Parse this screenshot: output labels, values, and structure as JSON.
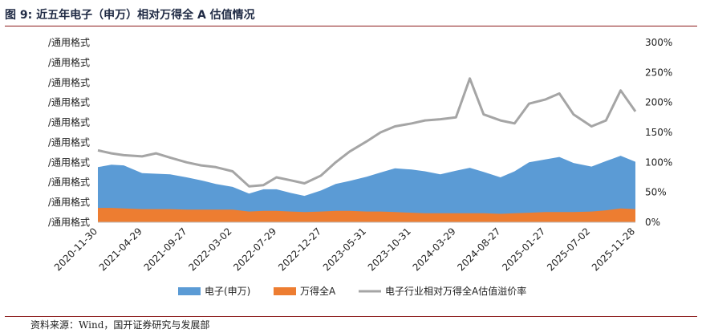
{
  "title": "图 9:  近五年电子（申万）相对万得全 A 估值情况",
  "source": "资料来源：Wind，国开证券研究与发展部",
  "chart_data": {
    "type": "area",
    "x_ticks": [
      "2020-11-30",
      "2021-04-29",
      "2021-09-27",
      "2022-03-02",
      "2022-07-29",
      "2022-12-27",
      "2023-05-31",
      "2023-10-31",
      "2024-03-29",
      "2024-08-27",
      "2025-01-27",
      "2025-07-02",
      "2025-11-28"
    ],
    "left_tick_labels": [
      "/通用格式",
      "/通用格式",
      "/通用格式",
      "/通用格式",
      "/通用格式",
      "/通用格式",
      "/通用格式",
      "/通用格式",
      "/通用格式",
      "/通用格式"
    ],
    "right_ticks": [
      "0%",
      "50%",
      "100%",
      "150%",
      "200%",
      "250%",
      "300%"
    ],
    "right_ylim": [
      0,
      300
    ],
    "colors": {
      "electronics": "#5b9bd5",
      "wind_all_a": "#ed7d31",
      "premium": "#a5a5a5"
    },
    "legend": [
      "电子(申万)",
      "万得全A",
      "电子行业相对万得全A估值溢价率"
    ],
    "x": [
      "2020-11-30",
      "2021-01-15",
      "2021-02-26",
      "2021-04-29",
      "2021-06-15",
      "2021-08-02",
      "2021-09-27",
      "2021-11-15",
      "2022-01-04",
      "2022-03-02",
      "2022-04-27",
      "2022-06-15",
      "2022-07-29",
      "2022-09-15",
      "2022-11-01",
      "2022-12-27",
      "2023-02-15",
      "2023-04-03",
      "2023-05-31",
      "2023-07-17",
      "2023-09-04",
      "2023-10-31",
      "2023-12-15",
      "2024-02-05",
      "2024-03-29",
      "2024-05-15",
      "2024-07-01",
      "2024-08-27",
      "2024-10-14",
      "2024-12-02",
      "2025-01-27",
      "2025-03-15",
      "2025-05-02",
      "2025-07-02",
      "2025-08-20",
      "2025-10-09",
      "2025-11-28"
    ],
    "series": [
      {
        "name": "电子(申万)",
        "values": [
          68,
          72,
          72,
          60,
          59,
          58,
          54,
          49,
          43,
          38,
          30,
          36,
          36,
          31,
          27,
          35,
          45,
          50,
          58,
          65,
          73,
          72,
          70,
          65,
          71,
          76,
          69,
          61,
          70,
          84,
          88,
          92,
          82,
          75,
          82,
          88,
          79
        ]
      },
      {
        "name": "万得全A",
        "values": [
          24,
          24,
          23,
          22,
          22,
          22,
          21,
          21,
          21,
          21,
          18,
          19,
          19,
          18,
          17,
          18,
          19,
          19,
          18,
          18,
          17,
          16,
          15,
          15,
          15,
          15,
          15,
          14,
          15,
          16,
          17,
          17,
          17,
          18,
          20,
          23,
          22
        ]
      },
      {
        "name": "电子行业相对万得全A估值溢价率",
        "values": [
          120,
          115,
          112,
          110,
          115,
          108,
          100,
          95,
          92,
          85,
          60,
          62,
          75,
          70,
          65,
          78,
          100,
          118,
          135,
          150,
          160,
          165,
          170,
          172,
          175,
          240,
          180,
          170,
          165,
          198,
          205,
          215,
          180,
          160,
          170,
          220,
          185
        ]
      }
    ]
  }
}
